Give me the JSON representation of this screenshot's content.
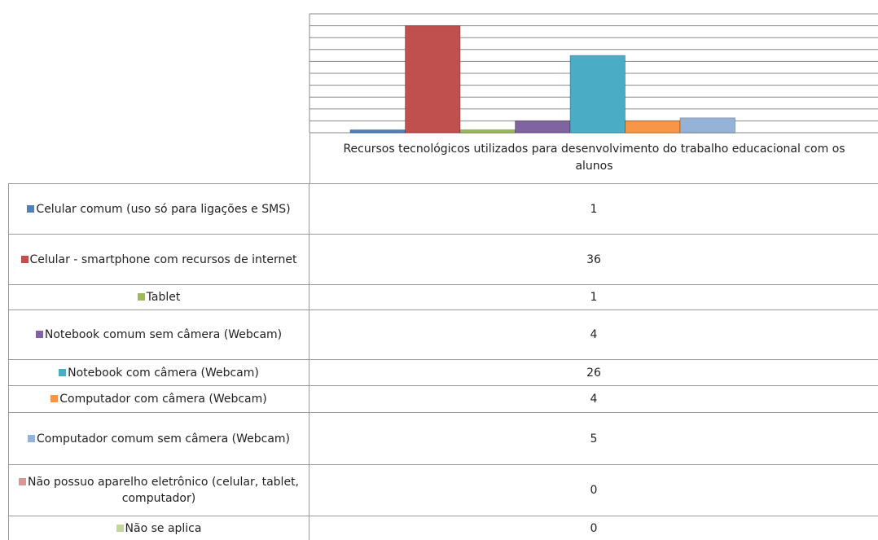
{
  "chart_data": {
    "type": "bar",
    "categories": [
      "Recursos tecnológicos utilizados para desenvolvimento do  trabalho educacional com os alunos"
    ],
    "series": [
      {
        "name": "Celular comum (uso só para ligações e SMS)",
        "color": "#4f81bd",
        "values": [
          1
        ]
      },
      {
        "name": "Celular - smartphone com recursos de internet",
        "color": "#c0504d",
        "values": [
          36
        ]
      },
      {
        "name": "Tablet",
        "color": "#9bbb59",
        "values": [
          1
        ]
      },
      {
        "name": "Notebook comum sem câmera (Webcam)",
        "color": "#8064a2",
        "values": [
          4
        ]
      },
      {
        "name": "Notebook com câmera (Webcam)",
        "color": "#4bacc6",
        "values": [
          26
        ]
      },
      {
        "name": "Computador com câmera (Webcam)",
        "color": "#f79646",
        "values": [
          4
        ]
      },
      {
        "name": "Computador comum sem câmera (Webcam)",
        "color": "#95b3d7",
        "values": [
          5
        ]
      },
      {
        "name": "Não possuo aparelho eletrônico (celular, tablet, computador)",
        "color": "#d99694",
        "values": [
          0
        ]
      },
      {
        "name": "Não se aplica",
        "color": "#c3d69b",
        "values": [
          0
        ]
      }
    ],
    "ylim": [
      0,
      40
    ],
    "yticks": [
      0,
      4,
      8,
      12,
      16,
      20,
      24,
      28,
      32,
      36,
      40
    ],
    "grid": true
  }
}
